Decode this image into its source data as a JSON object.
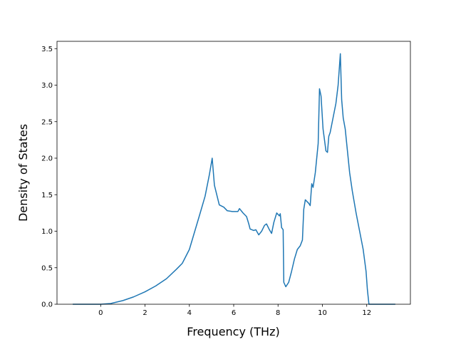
{
  "chart_data": {
    "type": "line",
    "xlabel": "Frequency (THz)",
    "ylabel": "Density of States",
    "x": [
      -1.26,
      0,
      0.45,
      1.0,
      1.48,
      2.0,
      2.48,
      2.97,
      3.42,
      3.68,
      4.0,
      4.48,
      4.71,
      4.9,
      5.03,
      5.13,
      5.35,
      5.55,
      5.71,
      5.94,
      6.19,
      6.26,
      6.42,
      6.58,
      6.68,
      6.74,
      6.9,
      7.0,
      7.13,
      7.26,
      7.39,
      7.48,
      7.61,
      7.71,
      7.81,
      7.94,
      8.06,
      8.1,
      8.16,
      8.23,
      8.26,
      8.35,
      8.48,
      8.61,
      8.74,
      8.87,
      9.0,
      9.1,
      9.16,
      9.23,
      9.39,
      9.45,
      9.52,
      9.58,
      9.68,
      9.81,
      9.87,
      9.94,
      10.03,
      10.16,
      10.23,
      10.29,
      10.35,
      10.48,
      10.61,
      10.71,
      10.81,
      10.87,
      10.94,
      11.03,
      11.13,
      11.23,
      11.35,
      11.52,
      11.68,
      11.84,
      11.97,
      12.03,
      12.1,
      13.29
    ],
    "series": [
      {
        "name": "Density of States",
        "color": "#1f77b4",
        "values": [
          0,
          0,
          0.01,
          0.05,
          0.1,
          0.17,
          0.25,
          0.35,
          0.48,
          0.56,
          0.75,
          1.24,
          1.48,
          1.77,
          2.0,
          1.63,
          1.36,
          1.33,
          1.28,
          1.27,
          1.27,
          1.31,
          1.25,
          1.2,
          1.1,
          1.03,
          1.01,
          1.02,
          0.95,
          1.0,
          1.08,
          1.1,
          1.02,
          0.97,
          1.12,
          1.25,
          1.21,
          1.24,
          1.05,
          1.02,
          0.3,
          0.24,
          0.3,
          0.45,
          0.62,
          0.75,
          0.8,
          0.88,
          1.3,
          1.43,
          1.38,
          1.35,
          1.65,
          1.6,
          1.8,
          2.2,
          2.95,
          2.85,
          2.4,
          2.1,
          2.08,
          2.3,
          2.35,
          2.55,
          2.75,
          3.0,
          3.43,
          2.8,
          2.55,
          2.4,
          2.1,
          1.8,
          1.55,
          1.25,
          1.0,
          0.75,
          0.45,
          0.2,
          0,
          0
        ]
      }
    ],
    "xlim": [
      -1.97,
      13.97
    ],
    "ylim": [
      0,
      3.6
    ],
    "xticks": [
      0,
      2,
      4,
      6,
      8,
      10,
      12
    ],
    "yticks": [
      {
        "value": 0,
        "label": "0.0"
      },
      {
        "value": 0.5,
        "label": "0.5"
      },
      {
        "value": 1,
        "label": "1.0"
      },
      {
        "value": 1.5,
        "label": "1.5"
      },
      {
        "value": 2,
        "label": "2.0"
      },
      {
        "value": 2.5,
        "label": "2.5"
      },
      {
        "value": 3,
        "label": "3.0"
      },
      {
        "value": 3.5,
        "label": "3.5"
      }
    ],
    "grid": false
  }
}
